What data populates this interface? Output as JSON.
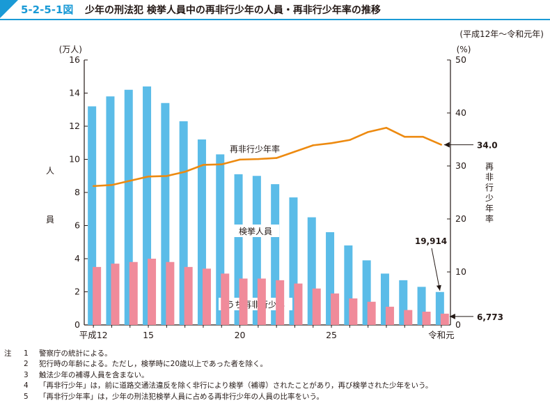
{
  "figure": {
    "number": "5-2-5-1図",
    "title": "少年の刑法犯 検挙人員中の再非行少年の人員・再非行少年率の推移",
    "period": "(平成12年～令和元年)"
  },
  "chart_data": {
    "type": "bar+line",
    "categories": [
      "平成12",
      "13",
      "14",
      "15",
      "16",
      "17",
      "18",
      "19",
      "20",
      "21",
      "22",
      "23",
      "24",
      "25",
      "26",
      "27",
      "28",
      "29",
      "30",
      "令和元"
    ],
    "x_tick_labels": [
      {
        "index": 0,
        "label": "平成12"
      },
      {
        "index": 3,
        "label": "15"
      },
      {
        "index": 8,
        "label": "20"
      },
      {
        "index": 13,
        "label": "25"
      },
      {
        "index": 19,
        "label": "令和元"
      }
    ],
    "left_axis": {
      "unit": "(万人)",
      "label": "人員",
      "ylim": [
        0,
        16
      ],
      "ticks": [
        0,
        2,
        4,
        6,
        8,
        10,
        12,
        14,
        16
      ]
    },
    "right_axis": {
      "unit": "(%)",
      "label": "再非行少年率",
      "ylim": [
        0,
        50
      ],
      "ticks": [
        0,
        10,
        20,
        30,
        40,
        50
      ]
    },
    "series": [
      {
        "name": "検挙人員",
        "kind": "bar",
        "axis": "left",
        "color": "#5bbce8",
        "values": [
          13.2,
          13.8,
          14.2,
          14.4,
          13.4,
          12.3,
          11.2,
          10.3,
          9.1,
          9.0,
          8.5,
          7.7,
          6.5,
          5.6,
          4.8,
          3.9,
          3.1,
          2.7,
          2.3,
          1.99
        ]
      },
      {
        "name": "うち再非行少年",
        "kind": "bar",
        "axis": "left",
        "color": "#f08b9a",
        "values": [
          3.5,
          3.7,
          3.8,
          4.0,
          3.8,
          3.5,
          3.4,
          3.1,
          2.8,
          2.8,
          2.7,
          2.5,
          2.2,
          1.9,
          1.6,
          1.4,
          1.1,
          0.9,
          0.8,
          0.68
        ]
      },
      {
        "name": "再非行少年率",
        "kind": "line",
        "axis": "right",
        "color": "#ed8a10",
        "values": [
          26.2,
          26.4,
          27.2,
          28.0,
          28.1,
          28.9,
          30.2,
          30.3,
          31.2,
          31.3,
          31.5,
          32.7,
          33.9,
          34.3,
          34.9,
          36.4,
          37.2,
          35.5,
          35.5,
          34.0
        ]
      }
    ],
    "annotations": {
      "rate_last": "34.0",
      "total_last": "19,914",
      "repeat_last": "6,773"
    }
  },
  "notes": [
    {
      "lead": "注",
      "num": "1",
      "text": "警察庁の統計による。"
    },
    {
      "lead": "",
      "num": "2",
      "text": "犯行時の年齢による。ただし，検挙時に20歳以上であった者を除く。"
    },
    {
      "lead": "",
      "num": "3",
      "text": "触法少年の補導人員を含まない。"
    },
    {
      "lead": "",
      "num": "4",
      "text": "「再非行少年」は，前に道路交通法違反を除く非行により検挙（補導）されたことがあり，再び検挙された少年をいう。"
    },
    {
      "lead": "",
      "num": "5",
      "text": "「再非行少年率」は，少年の刑法犯検挙人員に占める再非行少年の人員の比率をいう。"
    }
  ]
}
